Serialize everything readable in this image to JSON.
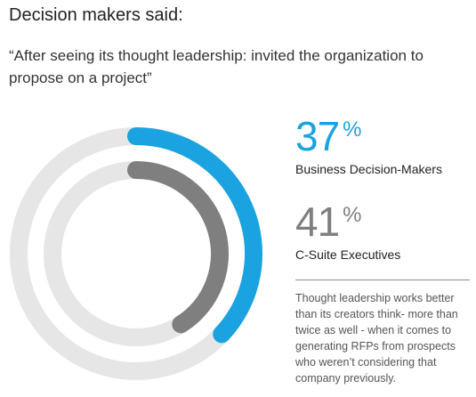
{
  "heading": "Decision makers said:",
  "quote": "“After seeing its thought leadership: invited the organization to propose on a project”",
  "colors": {
    "business": "#1aa3e0",
    "csuite": "#7f7f7f",
    "track": "#e6e6e6"
  },
  "stats": [
    {
      "value": "37",
      "unit": "%",
      "label": "Business Decision-Makers"
    },
    {
      "value": "41",
      "unit": "%",
      "label": "C-Suite Executives"
    }
  ],
  "note": "Thought leadership works better than its creators think- more than twice as well - when it comes to generating RFPs from prospects who weren’t considering that company previously.",
  "chart_data": {
    "type": "pie",
    "title": "",
    "series": [
      {
        "name": "Business Decision-Makers",
        "value": 37,
        "max": 100
      },
      {
        "name": "C-Suite Executives",
        "value": 41,
        "max": 100
      }
    ]
  }
}
